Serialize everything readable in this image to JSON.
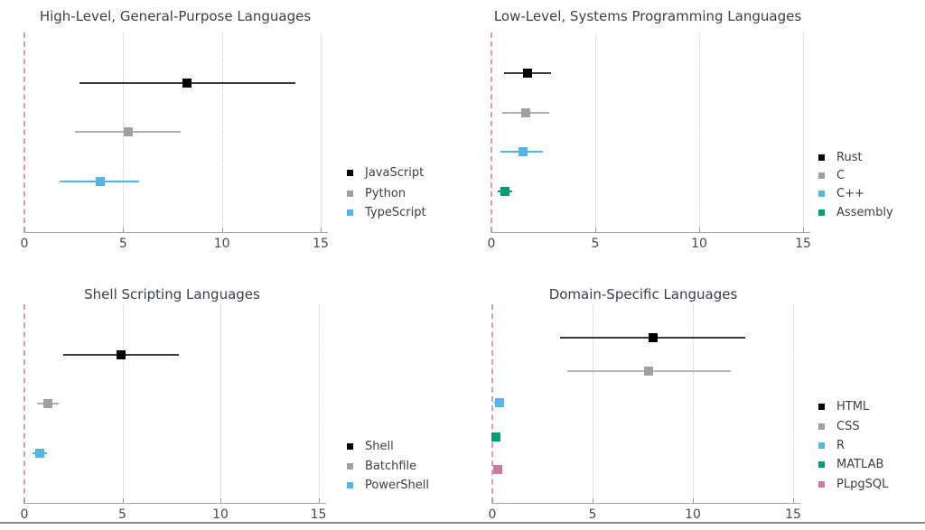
{
  "page": {
    "background": "#ffffff",
    "bottom_rule_color": "#8a8a8a",
    "gridline_color": "#c9c9c9",
    "axis_color": "#a8a8a8",
    "text_color": "#3b3f4a",
    "zero_line_color": "#d999bd"
  },
  "chart_data": [
    {
      "type": "scatter",
      "variant": "forest-plot",
      "title": "High-Level, General-Purpose Languages",
      "xlim": [
        0,
        15.3
      ],
      "xticks": [
        0,
        5,
        10,
        15
      ],
      "zero_line_x": 0,
      "grid": true,
      "legend_position": "right",
      "series": [
        {
          "name": "JavaScript",
          "color": "#000000",
          "line_color": "#3a3a3a",
          "estimate": 8.25,
          "ci_low": 2.8,
          "ci_high": 13.7
        },
        {
          "name": "Python",
          "color": "#a0a0a0",
          "line_color": "#b0b0b0",
          "estimate": 5.25,
          "ci_low": 2.55,
          "ci_high": 7.9
        },
        {
          "name": "TypeScript",
          "color": "#56b4e9",
          "line_color": "#56b4e9",
          "estimate": 3.85,
          "ci_low": 1.8,
          "ci_high": 5.8
        }
      ]
    },
    {
      "type": "scatter",
      "variant": "forest-plot",
      "title": "Low-Level, Systems Programming Languages",
      "xlim": [
        0,
        15.3
      ],
      "xticks": [
        0,
        5,
        10,
        15
      ],
      "zero_line_x": 0,
      "grid": true,
      "legend_position": "right",
      "series": [
        {
          "name": "Rust",
          "color": "#000000",
          "line_color": "#3a3a3a",
          "estimate": 1.75,
          "ci_low": 0.6,
          "ci_high": 2.85
        },
        {
          "name": "C",
          "color": "#a0a0a0",
          "line_color": "#b0b0b0",
          "estimate": 1.65,
          "ci_low": 0.5,
          "ci_high": 2.8
        },
        {
          "name": "C++",
          "color": "#56b4e9",
          "line_color": "#56b4e9",
          "estimate": 1.5,
          "ci_low": 0.45,
          "ci_high": 2.5
        },
        {
          "name": "Assembly",
          "color": "#009e73",
          "line_color": "#009e73",
          "estimate": 0.65,
          "ci_low": 0.3,
          "ci_high": 1.0
        }
      ]
    },
    {
      "type": "scatter",
      "variant": "forest-plot",
      "title": "Shell Scripting Languages",
      "xlim": [
        0,
        15.3
      ],
      "xticks": [
        0,
        5,
        10,
        15
      ],
      "zero_line_x": 0,
      "grid": true,
      "legend_position": "right",
      "series": [
        {
          "name": "Shell",
          "color": "#000000",
          "line_color": "#3a3a3a",
          "estimate": 4.95,
          "ci_low": 2.0,
          "ci_high": 7.9
        },
        {
          "name": "Batchfile",
          "color": "#a0a0a0",
          "line_color": "#b0b0b0",
          "estimate": 1.2,
          "ci_low": 0.65,
          "ci_high": 1.75
        },
        {
          "name": "PowerShell",
          "color": "#56b4e9",
          "line_color": "#56b4e9",
          "estimate": 0.8,
          "ci_low": 0.4,
          "ci_high": 1.15
        }
      ]
    },
    {
      "type": "scatter",
      "variant": "forest-plot",
      "title": "Domain-Specific Languages",
      "xlim": [
        0,
        15.3
      ],
      "xticks": [
        0,
        5,
        10,
        15
      ],
      "zero_line_x": 0,
      "grid": true,
      "legend_position": "right",
      "series": [
        {
          "name": "HTML",
          "color": "#000000",
          "line_color": "#3a3a3a",
          "estimate": 8.0,
          "ci_low": 3.4,
          "ci_high": 12.6
        },
        {
          "name": "CSS",
          "color": "#a0a0a0",
          "line_color": "#b8b8b8",
          "estimate": 7.8,
          "ci_low": 3.75,
          "ci_high": 11.9
        },
        {
          "name": "R",
          "color": "#56b4e9",
          "line_color": "#56b4e9",
          "estimate": 0.35,
          "ci_low": 0.1,
          "ci_high": 0.6
        },
        {
          "name": "MATLAB",
          "color": "#009e73",
          "line_color": "#009e73",
          "estimate": 0.18,
          "ci_low": 0.0,
          "ci_high": 0.35
        },
        {
          "name": "PLpgSQL",
          "color": "#cc79a7",
          "line_color": "#cc79a7",
          "estimate": 0.27,
          "ci_low": 0.1,
          "ci_high": 0.45
        }
      ]
    }
  ]
}
